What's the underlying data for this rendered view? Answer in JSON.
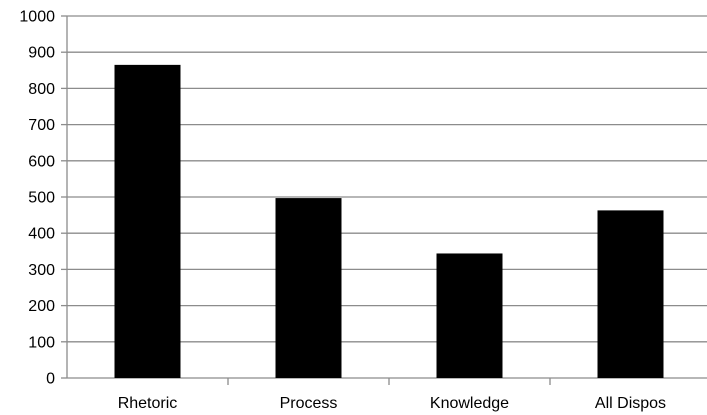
{
  "chart_data": {
    "type": "bar",
    "title": "",
    "xlabel": "",
    "ylabel": "",
    "categories": [
      "Rhetoric",
      "Process",
      "Knowledge",
      "All Dispos"
    ],
    "values": [
      865,
      497,
      344,
      463
    ],
    "ylim": [
      0,
      1000
    ],
    "y_ticks": [
      "0",
      "100",
      "200",
      "300",
      "400",
      "500",
      "600",
      "700",
      "800",
      "900",
      "1000"
    ],
    "grid": true,
    "legend": "none",
    "colors": {
      "bar": "#000000",
      "grid": "#8c8c8c",
      "text": "#000000",
      "background": "#ffffff"
    }
  }
}
